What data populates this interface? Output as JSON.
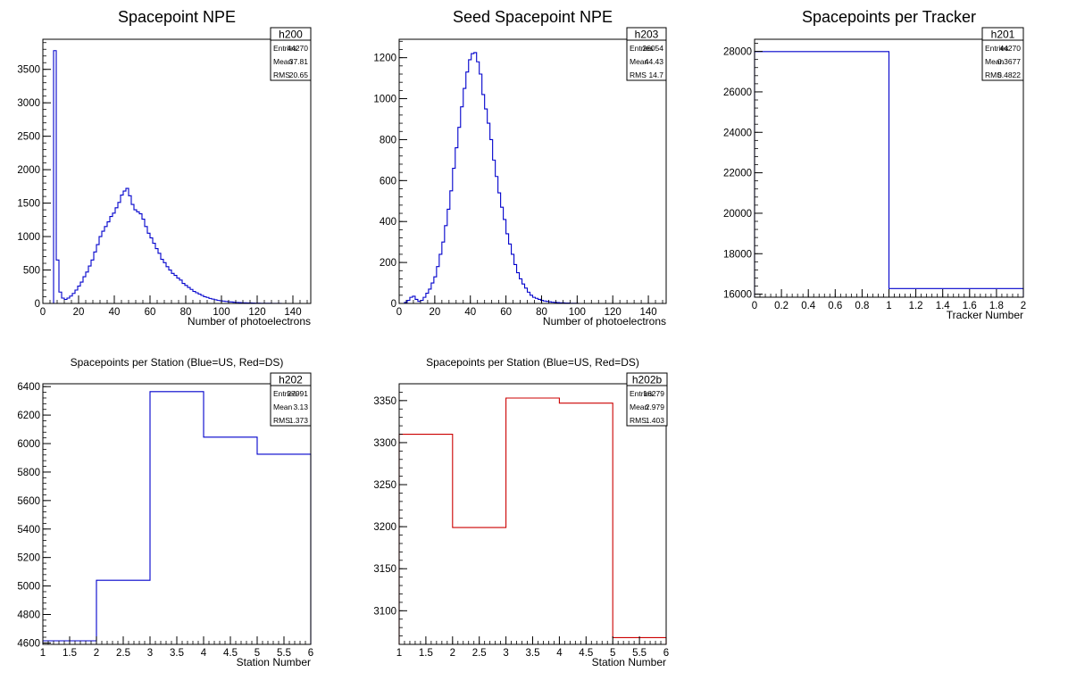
{
  "chart_data": [
    {
      "id": "h200",
      "type": "histogram",
      "title": "Spacepoint NPE",
      "xlabel": "Number of photoelectrons",
      "ylabel": "",
      "xlim": [
        0,
        150
      ],
      "ylim": [
        0,
        3950
      ],
      "xticks": [
        0,
        20,
        40,
        60,
        80,
        100,
        120,
        140
      ],
      "yticks": [
        0,
        500,
        1000,
        1500,
        2000,
        2500,
        3000,
        3500
      ],
      "grid": false,
      "line_color": "#0000cc",
      "bin_width": 1.5,
      "bin_start": 0,
      "values": [
        0,
        0,
        0,
        0,
        3780,
        650,
        170,
        80,
        60,
        80,
        110,
        150,
        200,
        260,
        320,
        400,
        470,
        560,
        650,
        770,
        880,
        1000,
        1080,
        1150,
        1220,
        1300,
        1350,
        1430,
        1510,
        1620,
        1680,
        1720,
        1610,
        1480,
        1400,
        1370,
        1340,
        1260,
        1150,
        1050,
        980,
        900,
        820,
        750,
        660,
        610,
        550,
        500,
        450,
        420,
        380,
        350,
        300,
        270,
        240,
        210,
        180,
        160,
        140,
        120,
        100,
        90,
        75,
        65,
        55,
        45,
        40,
        35,
        30,
        25,
        22,
        18,
        15,
        12,
        10,
        9,
        8,
        7,
        6,
        5,
        4,
        3,
        3,
        2,
        2,
        1,
        1,
        1,
        1,
        0,
        0,
        0,
        0,
        0,
        0,
        0,
        0,
        0,
        0,
        0
      ],
      "stats": {
        "name": "h200",
        "rows": [
          [
            "Entries",
            "44270"
          ],
          [
            "Mean",
            "37.81"
          ],
          [
            "RMS",
            "20.65"
          ]
        ]
      }
    },
    {
      "id": "h203",
      "type": "histogram",
      "title": "Seed Spacepoint NPE",
      "xlabel": "Number of photoelectrons",
      "ylabel": "",
      "xlim": [
        0,
        150
      ],
      "ylim": [
        0,
        1290
      ],
      "xticks": [
        0,
        20,
        40,
        60,
        80,
        100,
        120,
        140
      ],
      "yticks": [
        0,
        200,
        400,
        600,
        800,
        1000,
        1200
      ],
      "grid": false,
      "line_color": "#0000cc",
      "bin_width": 1.5,
      "bin_start": 0,
      "values": [
        0,
        0,
        5,
        15,
        30,
        35,
        20,
        10,
        15,
        30,
        50,
        70,
        100,
        130,
        180,
        240,
        300,
        380,
        460,
        550,
        660,
        760,
        860,
        960,
        1050,
        1130,
        1190,
        1220,
        1225,
        1180,
        1120,
        1020,
        950,
        880,
        800,
        700,
        620,
        540,
        470,
        410,
        340,
        290,
        240,
        190,
        150,
        120,
        95,
        75,
        55,
        40,
        30,
        25,
        20,
        15,
        12,
        10,
        8,
        6,
        5,
        4,
        3,
        3,
        2,
        2,
        1,
        1,
        1,
        0,
        0,
        0,
        0,
        0,
        0,
        0,
        0,
        0,
        0,
        0,
        0,
        0,
        0,
        0,
        0,
        0,
        0,
        0,
        0,
        0,
        0,
        0,
        0,
        0,
        0,
        0,
        0,
        0,
        0,
        0,
        0,
        0
      ],
      "stats": {
        "name": "h203",
        "rows": [
          [
            "Entries",
            "26054"
          ],
          [
            "Mean",
            "44.43"
          ],
          [
            "RMS",
            "14.7"
          ]
        ]
      }
    },
    {
      "id": "h201",
      "type": "histogram",
      "title": "Spacepoints per Tracker",
      "xlabel": "Tracker Number",
      "ylabel": "",
      "xlim": [
        0,
        2
      ],
      "ylim": [
        15850,
        28600
      ],
      "xticks": [
        0,
        0.2,
        0.4,
        0.6,
        0.8,
        1,
        1.2,
        1.4,
        1.6,
        1.8,
        2
      ],
      "yticks": [
        16000,
        18000,
        20000,
        22000,
        24000,
        26000,
        28000
      ],
      "grid": false,
      "line_color": "#0000cc",
      "bin_width": 1,
      "bin_start": 0,
      "values": [
        27991,
        16279
      ],
      "stats": {
        "name": "h201",
        "rows": [
          [
            "Entries",
            "44270"
          ],
          [
            "Mean",
            "0.3677"
          ],
          [
            "RMS",
            "0.4822"
          ]
        ]
      }
    },
    {
      "id": "h202",
      "type": "histogram",
      "title": "Spacepoints per Station (Blue=US, Red=DS)",
      "xlabel": "Station Number",
      "ylabel": "",
      "xlim": [
        1,
        6
      ],
      "ylim": [
        4590,
        6420
      ],
      "xticks": [
        1,
        1.5,
        2,
        2.5,
        3,
        3.5,
        4,
        4.5,
        5,
        5.5,
        6
      ],
      "yticks": [
        4600,
        4800,
        5000,
        5200,
        5400,
        5600,
        5800,
        6000,
        6200,
        6400
      ],
      "grid": false,
      "line_color": "#0000cc",
      "bin_width": 1,
      "bin_start": 1,
      "values": [
        4615,
        5040,
        6365,
        6045,
        5925
      ],
      "stats": {
        "name": "h202",
        "rows": [
          [
            "Entries",
            "27991"
          ],
          [
            "Mean",
            "3.13"
          ],
          [
            "RMS",
            "1.373"
          ]
        ]
      }
    },
    {
      "id": "h202b",
      "type": "histogram",
      "title": "Spacepoints per Station (Blue=US, Red=DS)",
      "xlabel": "Station Number",
      "ylabel": "",
      "xlim": [
        1,
        6
      ],
      "ylim": [
        3060,
        3370
      ],
      "xticks": [
        1,
        1.5,
        2,
        2.5,
        3,
        3.5,
        4,
        4.5,
        5,
        5.5,
        6
      ],
      "yticks": [
        3100,
        3150,
        3200,
        3250,
        3300,
        3350
      ],
      "grid": false,
      "line_color": "#cc0000",
      "bin_width": 1,
      "bin_start": 1,
      "values": [
        3310,
        3199,
        3353,
        3347,
        3068
      ],
      "stats": {
        "name": "h202b",
        "rows": [
          [
            "Entries",
            "16279"
          ],
          [
            "Mean",
            "2.979"
          ],
          [
            "RMS",
            "1.403"
          ]
        ]
      }
    }
  ]
}
